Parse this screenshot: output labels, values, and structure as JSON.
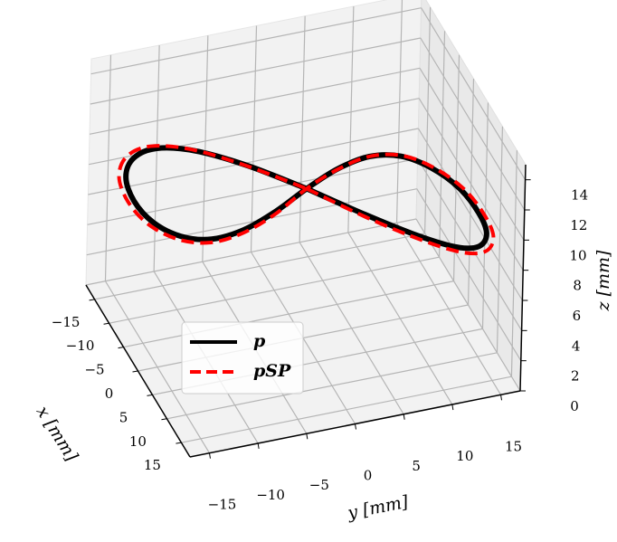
{
  "chart_data": {
    "type": "line3d",
    "xlabel": "x [mm]",
    "ylabel": "y [mm]",
    "zlabel": "z [mm]",
    "xlim": [
      -18,
      18
    ],
    "ylim": [
      -17,
      17
    ],
    "zlim": [
      0,
      15
    ],
    "xticks": [
      {
        "value": -15,
        "label": "−15"
      },
      {
        "value": -10,
        "label": "−10"
      },
      {
        "value": -5,
        "label": "−5"
      },
      0,
      5,
      10,
      15
    ],
    "yticks": [
      {
        "value": -15,
        "label": "−15"
      },
      {
        "value": -10,
        "label": "−10"
      },
      {
        "value": -5,
        "label": "−5"
      },
      0,
      5,
      10,
      15
    ],
    "zticks": [
      0,
      2,
      4,
      6,
      8,
      10,
      12,
      14
    ],
    "grid": true,
    "legend": "lower left",
    "series": [
      {
        "name": "p",
        "color": "#000000",
        "dash": false,
        "x": [
          0,
          6.7,
          12.0,
          14.8,
          14.7,
          12.0,
          7.5,
          2.5,
          -1.7,
          -4.2,
          -4.5,
          -2.8,
          0,
          2.8,
          4.5,
          4.2,
          1.7,
          -2.5,
          -7.5,
          -12.0,
          -14.7,
          -14.8,
          -12.0,
          -6.7,
          0
        ],
        "y": [
          0,
          4.0,
          7.8,
          11.0,
          13.4,
          15.0,
          15.5,
          15.0,
          13.4,
          11.0,
          7.8,
          4.0,
          0,
          -4.0,
          -7.8,
          -11.0,
          -13.4,
          -15.0,
          -15.5,
          -15.0,
          -13.4,
          -11.0,
          -7.8,
          -4.0,
          0
        ],
        "z": [
          9.9,
          9.8,
          9.6,
          9.3,
          9.0,
          8.8,
          8.7,
          8.8,
          9.0,
          9.3,
          9.6,
          9.8,
          9.9,
          9.8,
          9.6,
          9.3,
          9.0,
          8.8,
          8.7,
          8.8,
          9.0,
          9.3,
          9.6,
          9.8,
          9.9
        ]
      },
      {
        "name": "pSP",
        "color": "#ff0000",
        "dash": true,
        "x": [
          0,
          7.1,
          12.7,
          15.7,
          15.6,
          12.7,
          8.0,
          2.7,
          -1.8,
          -4.5,
          -4.8,
          -3.0,
          0,
          3.0,
          4.8,
          4.5,
          1.8,
          -2.7,
          -8.0,
          -12.7,
          -15.6,
          -15.7,
          -12.7,
          -7.1,
          0
        ],
        "y": [
          0,
          4.1,
          8.0,
          11.3,
          13.8,
          15.5,
          16.0,
          15.5,
          13.8,
          11.3,
          8.0,
          4.1,
          0,
          -4.1,
          -8.0,
          -11.3,
          -13.8,
          -15.5,
          -16.0,
          -15.5,
          -13.8,
          -11.3,
          -8.0,
          -4.1,
          0
        ],
        "z": [
          9.9,
          9.7,
          9.5,
          9.2,
          8.9,
          8.7,
          8.6,
          8.7,
          8.9,
          9.2,
          9.5,
          9.7,
          9.9,
          9.7,
          9.5,
          9.2,
          8.9,
          8.7,
          8.6,
          8.7,
          8.9,
          9.2,
          9.5,
          9.7,
          9.9
        ]
      }
    ]
  }
}
